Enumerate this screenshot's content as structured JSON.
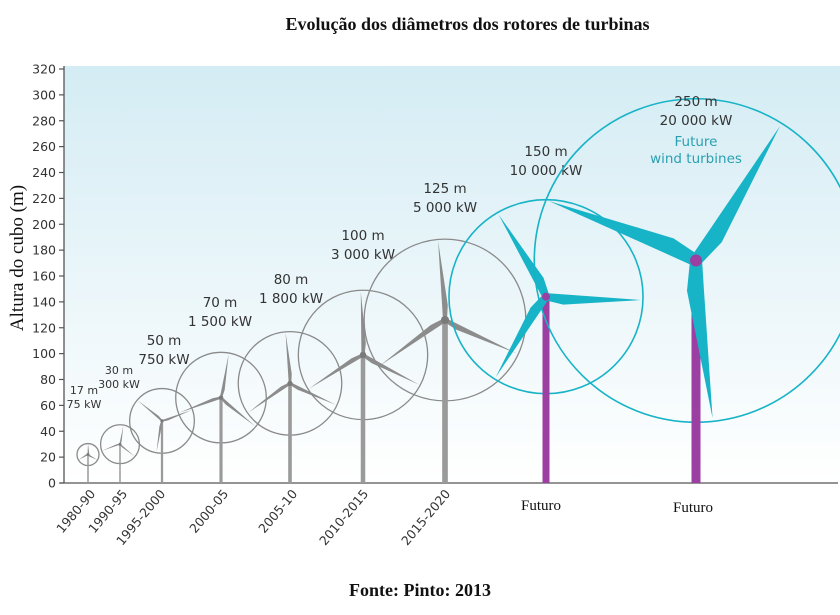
{
  "title": "Evolução dos diâmetros dos rotores de turbinas",
  "source": "Fonte:  Pinto: 2013",
  "colors": {
    "past": "#8a8a8a",
    "future_rotor": "#17b3c7",
    "future_tower": "#9b3fa3",
    "sky_top": "#d4ecf4",
    "sky_bottom": "#ffffff"
  },
  "chart_data": {
    "type": "scatter",
    "title": "Evolução dos diâmetros dos rotores de turbinas",
    "xlabel": "",
    "ylabel": "Altura do cubo (m)",
    "ylim": [
      0,
      320
    ],
    "yticks": [
      0,
      20,
      40,
      60,
      80,
      100,
      120,
      140,
      160,
      180,
      200,
      220,
      240,
      260,
      280,
      300,
      320
    ],
    "grid": false,
    "categories": [
      "1980-90",
      "1990-95",
      "1995-2000",
      "2000-05",
      "2005-10",
      "2010-2015",
      "2015-2020",
      "Futuro",
      "Futuro"
    ],
    "turbines": [
      {
        "period": "1980-90",
        "hub_height": 22,
        "diameter": 17,
        "label_diameter": "17 m",
        "label_power": "75 kW",
        "future": false,
        "footnote": ""
      },
      {
        "period": "1990-95",
        "hub_height": 30,
        "diameter": 30,
        "label_diameter": "30 m",
        "label_power": "300 kW",
        "future": false,
        "footnote": ""
      },
      {
        "period": "1995-2000",
        "hub_height": 48,
        "diameter": 50,
        "label_diameter": "50 m",
        "label_power": "750 kW",
        "future": false,
        "footnote": ""
      },
      {
        "period": "2000-05",
        "hub_height": 66,
        "diameter": 70,
        "label_diameter": "70 m",
        "label_power": "1 500 kW",
        "future": false,
        "footnote": ""
      },
      {
        "period": "2005-10",
        "hub_height": 77,
        "diameter": 80,
        "label_diameter": "80 m",
        "label_power": "1 800 kW",
        "future": false,
        "footnote": ""
      },
      {
        "period": "2010-2015",
        "hub_height": 99,
        "diameter": 100,
        "label_diameter": "100 m",
        "label_power": "3 000 kW",
        "future": false,
        "footnote": ""
      },
      {
        "period": "2015-2020",
        "hub_height": 126,
        "diameter": 125,
        "label_diameter": "125 m",
        "label_power": "5 000 kW",
        "future": false,
        "footnote": ""
      },
      {
        "period": "Futuro",
        "hub_height": 144,
        "diameter": 150,
        "label_diameter": "150 m",
        "label_power": "10 000 kW",
        "future": true,
        "footnote": ""
      },
      {
        "period": "Futuro",
        "hub_height": 172,
        "diameter": 250,
        "label_diameter": "250 m",
        "label_power": "20 000 kW",
        "future": true,
        "footnote": "Future\nwind turbines"
      }
    ]
  }
}
